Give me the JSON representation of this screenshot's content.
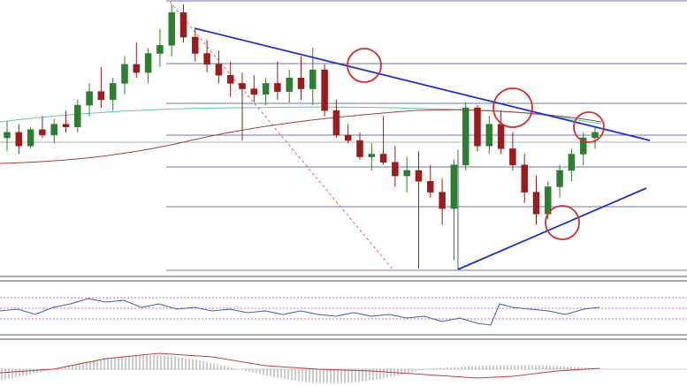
{
  "chart_data": {
    "type": "candlestick",
    "ylim": [
      0,
      100
    ],
    "up_color": "#2f7d32",
    "down_color": "#9b1c1c",
    "open": [
      50,
      52,
      47,
      53,
      51,
      55,
      54,
      62,
      67,
      64,
      70,
      77,
      74,
      81,
      84,
      96,
      87,
      81,
      77,
      73,
      70,
      68,
      66,
      70,
      67,
      72,
      68,
      75,
      60,
      51,
      49,
      43,
      44,
      41,
      36,
      38,
      34,
      30,
      24,
      40,
      61,
      47,
      55,
      46,
      40,
      30,
      22,
      32,
      38,
      44,
      50
    ],
    "high": [
      56,
      55,
      54,
      58,
      57,
      60,
      64,
      70,
      76,
      72,
      80,
      85,
      83,
      90,
      99,
      99,
      90,
      86,
      82,
      78,
      74,
      73,
      72,
      78,
      75,
      80,
      83,
      77,
      64,
      55,
      52,
      48,
      58,
      47,
      43,
      45,
      40,
      35,
      42,
      63,
      62,
      58,
      60,
      52,
      44,
      36,
      34,
      40,
      46,
      52,
      54
    ],
    "low": [
      45,
      44,
      46,
      50,
      48,
      52,
      52,
      58,
      61,
      60,
      66,
      72,
      70,
      76,
      80,
      85,
      78,
      74,
      70,
      65,
      49,
      63,
      62,
      64,
      63,
      64,
      62,
      58,
      50,
      48,
      42,
      38,
      40,
      32,
      30,
      2,
      28,
      18,
      5,
      38,
      45,
      44,
      44,
      38,
      26,
      18,
      20,
      28,
      34,
      40,
      46
    ],
    "close": [
      52,
      47,
      53,
      51,
      55,
      54,
      62,
      67,
      64,
      70,
      77,
      74,
      81,
      84,
      96,
      87,
      81,
      77,
      73,
      70,
      68,
      66,
      70,
      67,
      72,
      68,
      75,
      60,
      51,
      49,
      43,
      44,
      41,
      36,
      38,
      34,
      30,
      24,
      40,
      61,
      47,
      55,
      46,
      40,
      30,
      22,
      32,
      38,
      44,
      50,
      52
    ]
  }
}
